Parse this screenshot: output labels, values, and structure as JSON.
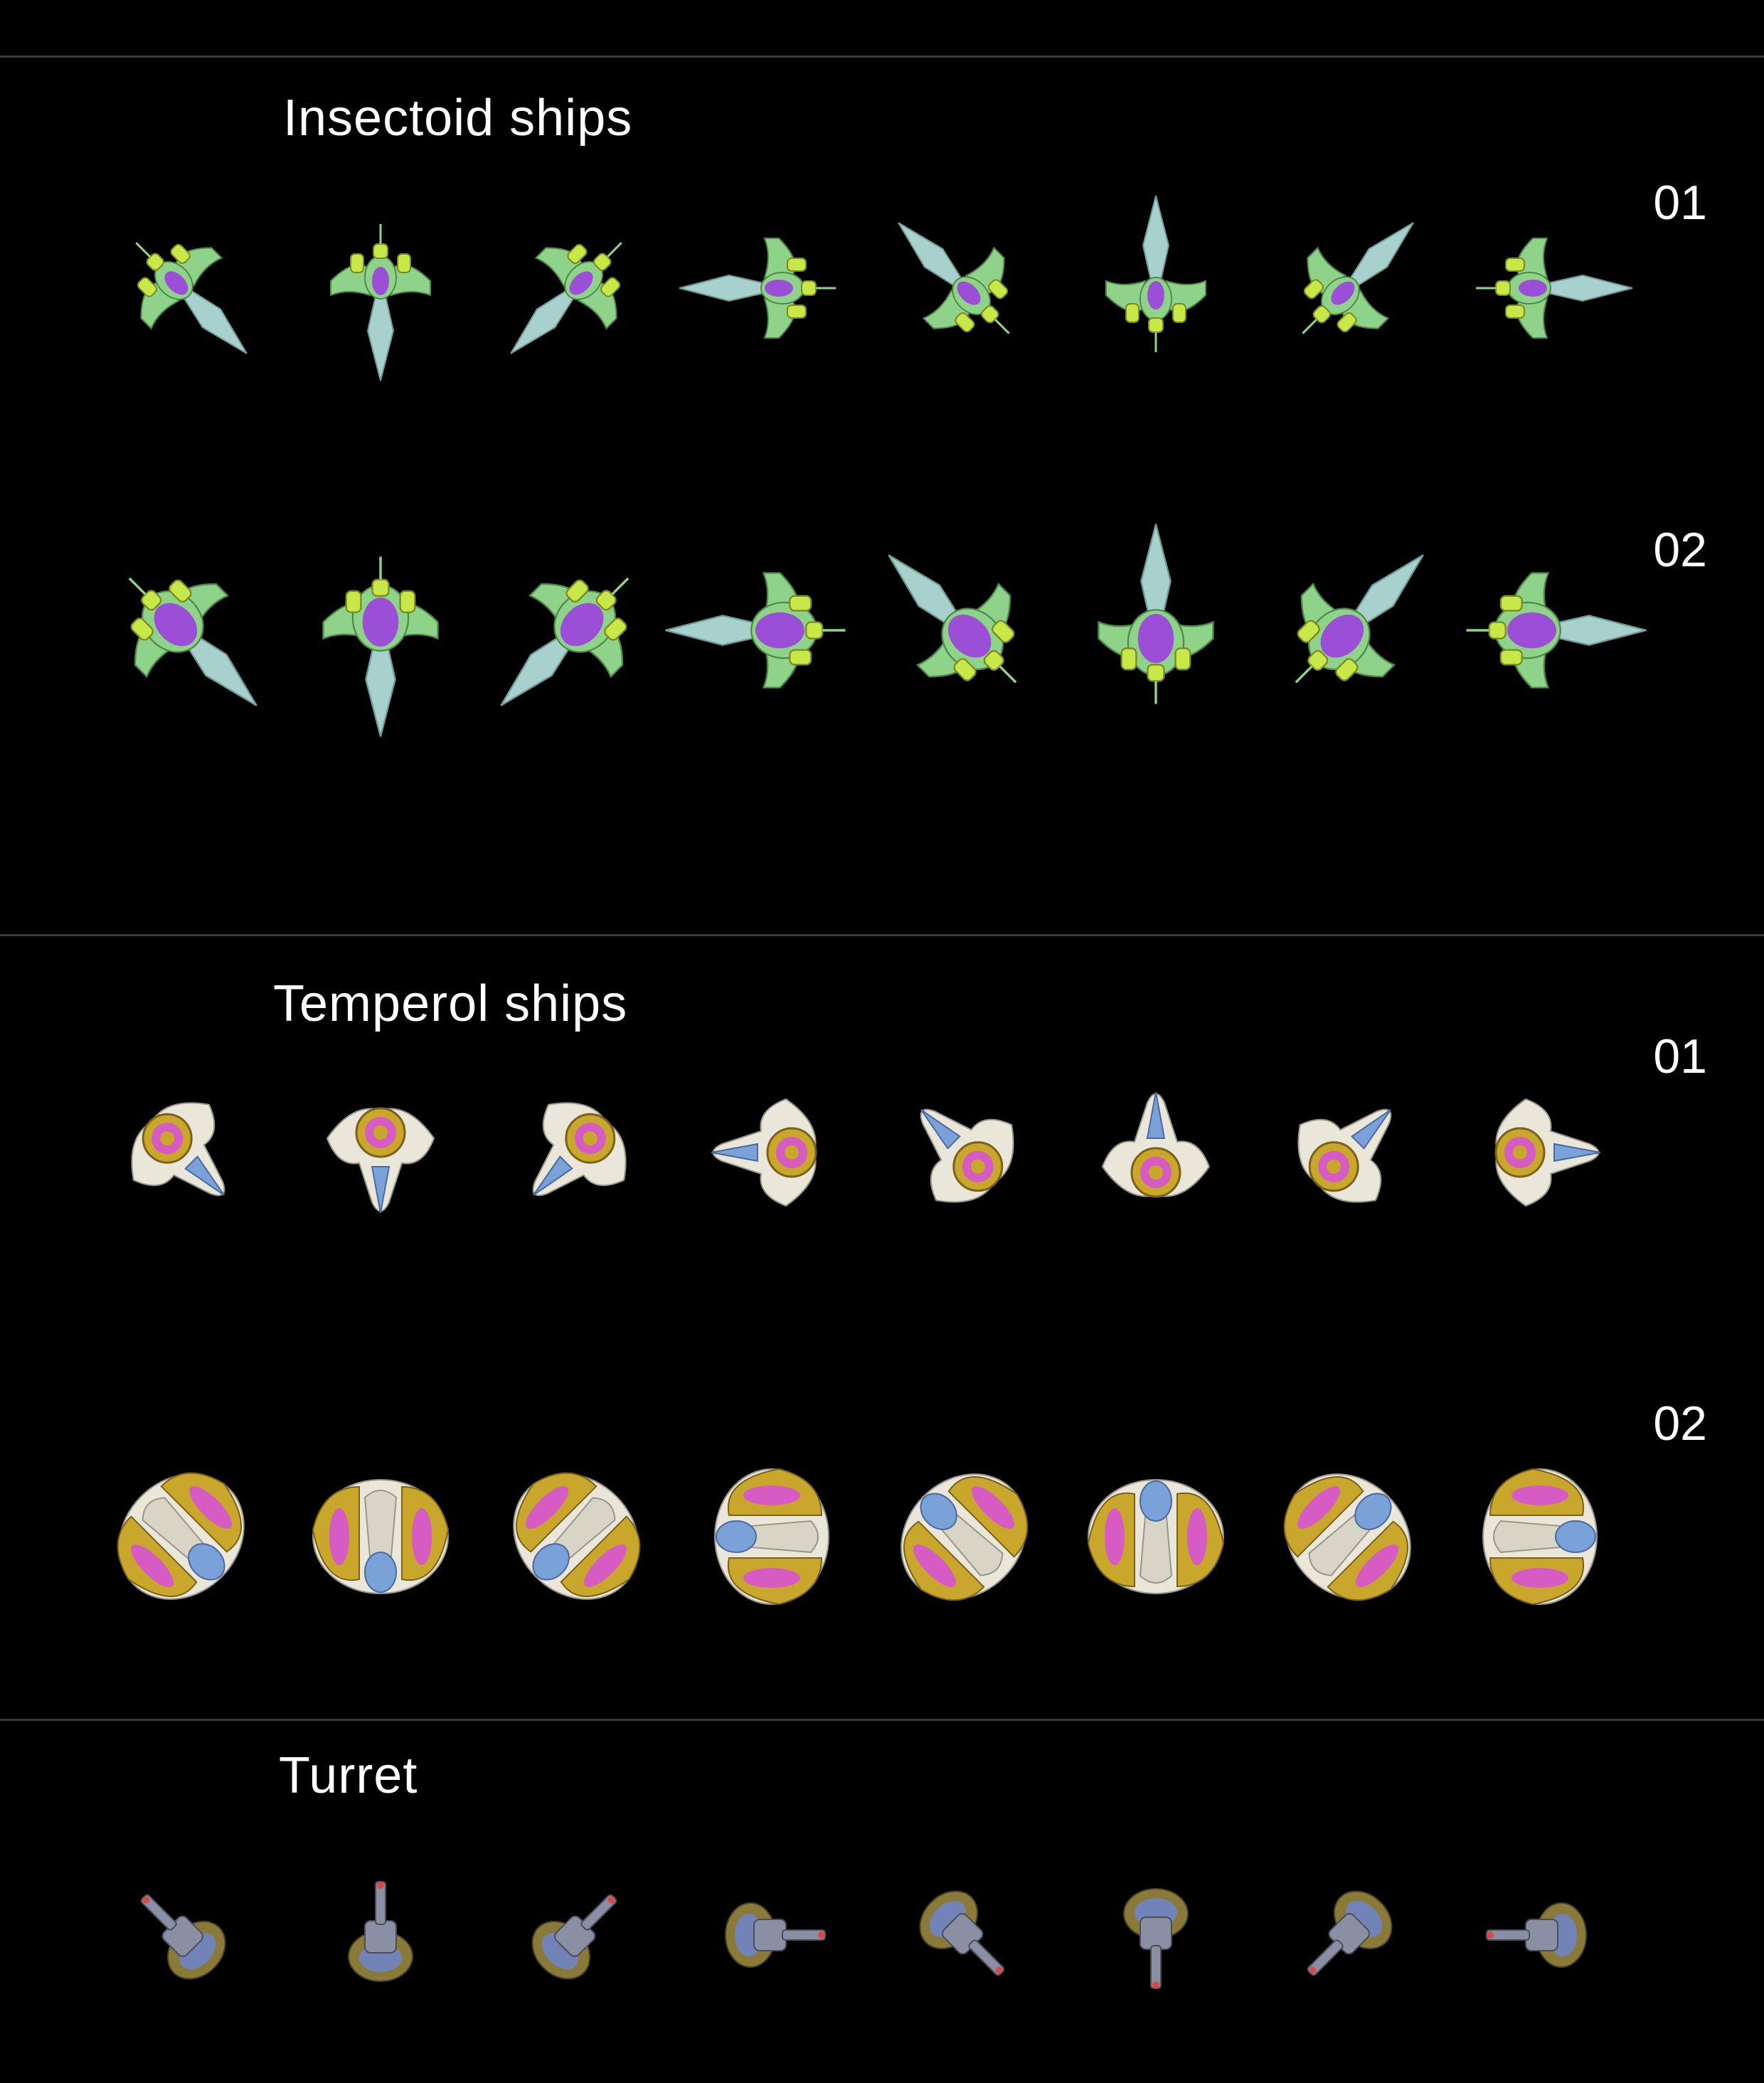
{
  "sections": [
    {
      "title": "Insectoid ships",
      "faction": "insectoid",
      "rows": [
        {
          "label": "01",
          "size": 1
        },
        {
          "label": "02",
          "size": 2
        }
      ]
    },
    {
      "title": "Temperol ships",
      "faction": "temperol",
      "rows": [
        {
          "label": "01",
          "size": 1
        },
        {
          "label": "02",
          "size": 2
        }
      ]
    },
    {
      "title": "Turret",
      "faction": "turret",
      "rows": [
        {
          "label": "",
          "size": 1
        }
      ]
    }
  ],
  "rotation_angles_deg": [
    -45,
    0,
    45,
    90,
    135,
    180,
    225,
    270
  ],
  "colors": {
    "background": "#000000",
    "divider": "#3a3a3a",
    "text": "#ffffff",
    "insectoid_hull": "#a8d0cc",
    "insectoid_body": "#8fd38a",
    "insectoid_engine": "#c8e84a",
    "insectoid_core": "#9a4fd6",
    "temperol_hull": "#eae6da",
    "temperol_gold": "#c9a62c",
    "temperol_glow": "#d65cc4",
    "temperol_canopy": "#7aa2d8",
    "turret_metal": "#8a8fa3",
    "turret_base": "#8a7a3a",
    "turret_glow": "#6b86d8"
  }
}
